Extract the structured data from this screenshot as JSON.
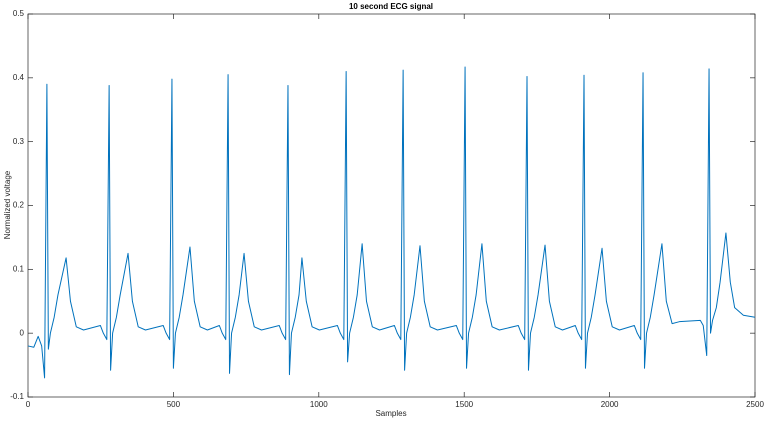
{
  "chart_data": {
    "type": "line",
    "title": "10 second ECG signal",
    "xlabel": "Samples",
    "ylabel": "Normalized voltage",
    "color": "#0072bd",
    "x": [
      0,
      20,
      35,
      47,
      57,
      65,
      70,
      77,
      90,
      103,
      131,
      146,
      166,
      191,
      249,
      259,
      271,
      279,
      284,
      291,
      304,
      317,
      344,
      359,
      379,
      404,
      465,
      475,
      487,
      495,
      500,
      507,
      520,
      533,
      557,
      572,
      592,
      617,
      658,
      668,
      680,
      688,
      693,
      700,
      713,
      726,
      743,
      758,
      778,
      803,
      864,
      874,
      886,
      894,
      899,
      906,
      919,
      932,
      942,
      957,
      977,
      1002,
      1064,
      1074,
      1086,
      1094,
      1099,
      1106,
      1119,
      1132,
      1149,
      1164,
      1184,
      1209,
      1260,
      1270,
      1282,
      1290,
      1295,
      1302,
      1315,
      1328,
      1348,
      1363,
      1383,
      1408,
      1473,
      1483,
      1495,
      1503,
      1508,
      1515,
      1528,
      1541,
      1561,
      1576,
      1596,
      1621,
      1686,
      1696,
      1708,
      1716,
      1721,
      1728,
      1741,
      1754,
      1778,
      1793,
      1813,
      1838,
      1882,
      1892,
      1904,
      1912,
      1917,
      1924,
      1937,
      1950,
      1974,
      1989,
      2009,
      2034,
      2085,
      2095,
      2107,
      2115,
      2120,
      2127,
      2140,
      2153,
      2180,
      2195,
      2215,
      2240,
      2312,
      2322,
      2334,
      2342,
      2347,
      2354,
      2367,
      2380,
      2400,
      2415,
      2430,
      2460,
      2500
    ],
    "values": [
      -0.02,
      -0.022,
      -0.005,
      -0.02,
      -0.07,
      0.39,
      -0.025,
      0,
      0.025,
      0.06,
      0.118,
      0.05,
      0.01,
      0.005,
      0.012,
      0,
      -0.01,
      0.388,
      -0.058,
      0,
      0.025,
      0.06,
      0.125,
      0.05,
      0.01,
      0.005,
      0.012,
      0,
      -0.01,
      0.398,
      -0.055,
      0,
      0.025,
      0.06,
      0.135,
      0.05,
      0.01,
      0.005,
      0.012,
      0,
      -0.01,
      0.405,
      -0.063,
      0,
      0.025,
      0.06,
      0.125,
      0.05,
      0.01,
      0.005,
      0.012,
      0,
      -0.01,
      0.388,
      -0.065,
      0,
      0.025,
      0.06,
      0.118,
      0.05,
      0.01,
      0.005,
      0.012,
      0,
      -0.01,
      0.41,
      -0.045,
      0,
      0.025,
      0.06,
      0.14,
      0.05,
      0.01,
      0.005,
      0.012,
      0,
      -0.01,
      0.412,
      -0.058,
      0,
      0.025,
      0.06,
      0.137,
      0.05,
      0.01,
      0.005,
      0.012,
      0,
      -0.01,
      0.417,
      -0.055,
      0,
      0.025,
      0.06,
      0.14,
      0.05,
      0.01,
      0.005,
      0.012,
      0,
      -0.01,
      0.402,
      -0.058,
      0,
      0.025,
      0.06,
      0.138,
      0.05,
      0.01,
      0.005,
      0.012,
      0,
      -0.01,
      0.404,
      -0.055,
      0,
      0.025,
      0.06,
      0.133,
      0.05,
      0.01,
      0.005,
      0.012,
      0,
      -0.01,
      0.408,
      -0.055,
      0,
      0.025,
      0.06,
      0.14,
      0.05,
      0.015,
      0.018,
      0.02,
      0.012,
      -0.035,
      0.414,
      0,
      0.02,
      0.04,
      0.08,
      0.157,
      0.08,
      0.04,
      0.028,
      0.025
    ],
    "xlim": [
      0,
      2500
    ],
    "xticks": [
      0,
      500,
      1000,
      1500,
      2000,
      2500
    ],
    "ylim": [
      -0.1,
      0.5
    ],
    "yticks": [
      -0.1,
      0,
      0.1,
      0.2,
      0.3,
      0.4,
      0.5
    ],
    "grid": false
  }
}
